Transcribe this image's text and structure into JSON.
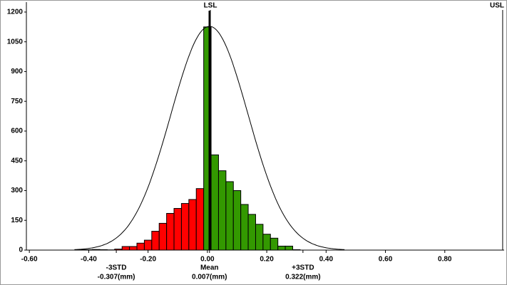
{
  "chart_data": {
    "type": "histogram",
    "bins": [
      -0.4375,
      -0.4125,
      -0.3875,
      -0.3625,
      -0.3375,
      -0.3125,
      -0.2875,
      -0.2625,
      -0.2375,
      -0.2125,
      -0.1875,
      -0.1625,
      -0.1375,
      -0.1125,
      -0.0875,
      -0.0625,
      -0.0375,
      -0.0125,
      0.0125,
      0.0375,
      0.0625,
      0.0875,
      0.1125,
      0.1375,
      0.1625,
      0.1875,
      0.2125,
      0.2375,
      0.2625,
      0.2875,
      0.3125
    ],
    "values": [
      2,
      2,
      3,
      2,
      1,
      5,
      18,
      18,
      35,
      50,
      95,
      135,
      185,
      210,
      235,
      255,
      310,
      1125,
      480,
      400,
      345,
      300,
      230,
      180,
      130,
      80,
      60,
      20,
      20,
      2
    ],
    "colors": [
      "#ff0000",
      "#ff0000",
      "#ff0000",
      "#ff0000",
      "#ff0000",
      "#ff0000",
      "#ff0000",
      "#ff0000",
      "#ff0000",
      "#ff0000",
      "#ff0000",
      "#ff0000",
      "#ff0000",
      "#ff0000",
      "#ff0000",
      "#ff0000",
      "#ff0000",
      "#339900",
      "#339900",
      "#339900",
      "#339900",
      "#339900",
      "#339900",
      "#339900",
      "#339900",
      "#339900",
      "#339900",
      "#339900",
      "#339900",
      "#339900"
    ],
    "normal_curve": {
      "mean": 0.007,
      "std": 0.13,
      "peak": 1128
    },
    "mean_line": 0.007,
    "limits": [
      {
        "label": "LSL",
        "x": 0.01
      },
      {
        "label": "USL",
        "x": 0.995
      }
    ],
    "annotations": [
      {
        "label": "-3STD",
        "value_label": "-0.307(mm)",
        "x": -0.307
      },
      {
        "label": "Mean",
        "value_label": "0.007(mm)",
        "x": 0.007
      },
      {
        "label": "+3STD",
        "value_label": "0.322(mm)",
        "x": 0.322
      }
    ],
    "xlim": [
      -0.61,
      1.0
    ],
    "xticks": [
      {
        "value": -0.6,
        "label": "-0.60"
      },
      {
        "value": -0.4,
        "label": "-0.40"
      },
      {
        "value": -0.2,
        "label": "-0.20"
      },
      {
        "value": 0,
        "label": "0.00"
      },
      {
        "value": 0.2,
        "label": "0.20"
      },
      {
        "value": 0.4,
        "label": "0.40"
      },
      {
        "value": 0.6,
        "label": "0.60"
      },
      {
        "value": 0.8,
        "label": "0.80"
      }
    ],
    "ylim": [
      0,
      1250
    ],
    "yticks": [
      0,
      150,
      300,
      450,
      600,
      750,
      900,
      1050,
      1200
    ]
  }
}
